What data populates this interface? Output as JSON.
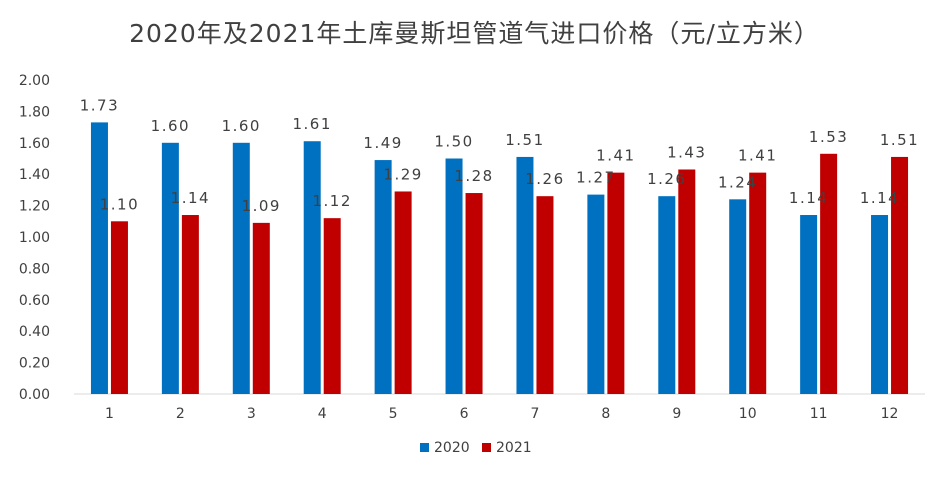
{
  "chart_data": {
    "type": "bar",
    "title": "2020年及2021年土库曼斯坦管道气进口价格（元/立方米）",
    "categories": [
      "1",
      "2",
      "3",
      "4",
      "5",
      "6",
      "7",
      "8",
      "9",
      "10",
      "11",
      "12"
    ],
    "series": [
      {
        "name": "2020",
        "color": "#0070c0",
        "values": [
          1.73,
          1.6,
          1.6,
          1.61,
          1.49,
          1.5,
          1.51,
          1.27,
          1.26,
          1.24,
          1.14,
          1.14
        ]
      },
      {
        "name": "2021",
        "color": "#c00000",
        "values": [
          1.1,
          1.14,
          1.09,
          1.12,
          1.29,
          1.28,
          1.26,
          1.41,
          1.43,
          1.41,
          1.53,
          1.51
        ]
      }
    ],
    "value_labels": {
      "2020": [
        "1.73",
        "1.60",
        "1.60",
        "1.61",
        "1.49",
        "1.50",
        "1.51",
        "1.27",
        "1.26",
        "1.24",
        "1.14",
        "1.14"
      ],
      "2021": [
        "1.10",
        "1.14",
        "1.09",
        "1.12",
        "1.29",
        "1.28",
        "1.26",
        "1.41",
        "1.43",
        "1.41",
        "1.53",
        "1.51"
      ]
    },
    "ylim": [
      0,
      2.0
    ],
    "yticks": [
      "0.00",
      "0.20",
      "0.40",
      "0.60",
      "0.80",
      "1.00",
      "1.20",
      "1.40",
      "1.60",
      "1.80",
      "2.00"
    ],
    "grid": false,
    "legend_position": "bottom-center",
    "xlabel": "",
    "ylabel": ""
  }
}
